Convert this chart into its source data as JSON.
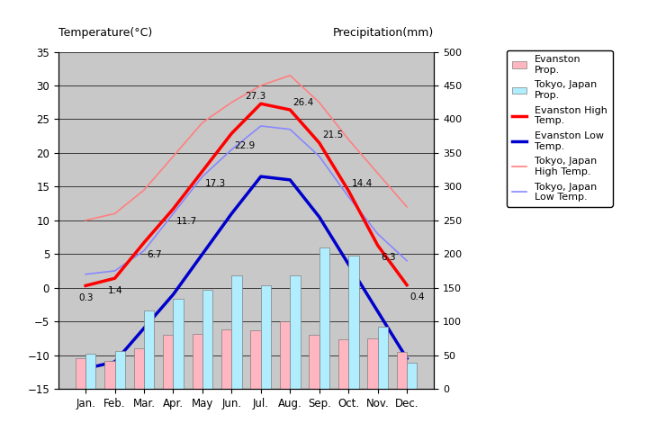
{
  "months": [
    "Jan.",
    "Feb.",
    "Mar.",
    "Apr.",
    "May",
    "Jun.",
    "Jul.",
    "Aug.",
    "Sep.",
    "Oct.",
    "Nov.",
    "Dec."
  ],
  "evanston_high": [
    0.3,
    1.4,
    6.7,
    11.7,
    17.3,
    22.9,
    27.3,
    26.4,
    21.5,
    14.4,
    6.3,
    0.4
  ],
  "evanston_low": [
    -12.0,
    -11.0,
    -6.0,
    -1.0,
    5.0,
    11.0,
    16.5,
    16.0,
    10.5,
    3.5,
    -3.5,
    -10.5
  ],
  "tokyo_high": [
    10.0,
    11.0,
    14.5,
    19.5,
    24.5,
    27.5,
    30.0,
    31.5,
    27.5,
    22.0,
    17.0,
    12.0
  ],
  "tokyo_low": [
    2.0,
    2.5,
    5.5,
    11.0,
    16.5,
    20.5,
    24.0,
    23.5,
    19.5,
    13.5,
    8.0,
    4.0
  ],
  "evanston_precip": [
    45,
    42,
    60,
    80,
    82,
    88,
    87,
    100,
    80,
    73,
    75,
    55
  ],
  "tokyo_precip": [
    52,
    56,
    116,
    133,
    147,
    168,
    154,
    168,
    210,
    197,
    92,
    39
  ],
  "ylim_left": [
    -15,
    35
  ],
  "ylim_right": [
    0,
    500
  ],
  "evanston_high_color": "#FF0000",
  "evanston_low_color": "#0000CC",
  "tokyo_high_color": "#FF8080",
  "tokyo_low_color": "#8888FF",
  "evanston_precip_color": "#FFB6C1",
  "tokyo_precip_color": "#B0EEFF",
  "bg_color": "#C8C8C8",
  "label_evanston_high": "Evanston High\nTemp.",
  "label_evanston_low": "Evanston Low\nTemp.",
  "label_tokyo_high": "Tokyo, Japan\nHigh Temp.",
  "label_tokyo_low": "Tokyo, Japan\nLow Temp.",
  "label_evanston_precip": "Evanston\nProp.",
  "label_tokyo_precip": "Tokyo, Japan\nProp.",
  "evanston_high_labels": [
    "0.3",
    "1.4",
    "6.7",
    "11.7",
    "17.3",
    "22.9",
    "27.3",
    "26.4",
    "21.5",
    "14.4",
    "6.3",
    "0.4"
  ],
  "title_left": "Temperature(°C)",
  "title_right": "Precipitation(mm)"
}
